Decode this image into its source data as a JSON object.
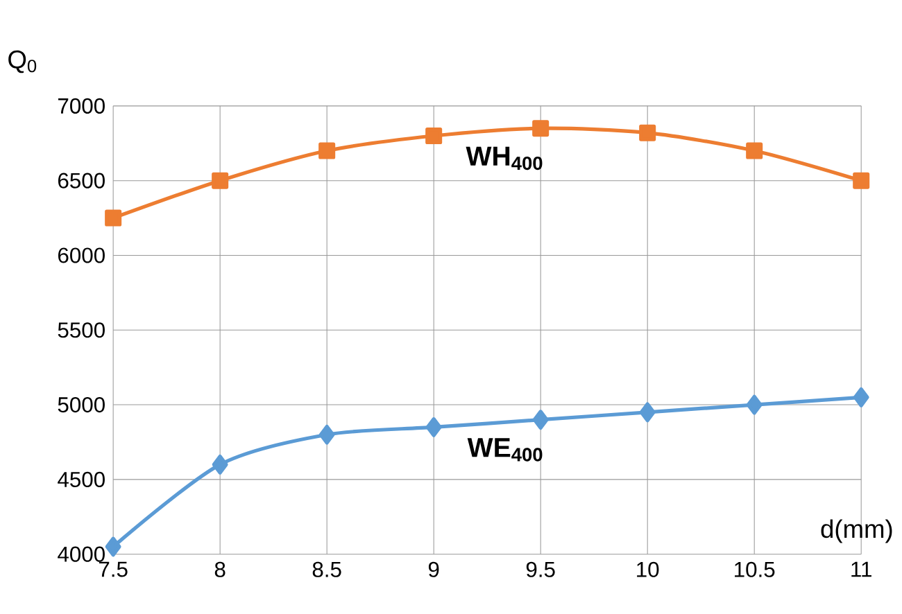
{
  "chart_data": {
    "type": "line",
    "xlabel": "d(mm)",
    "ylabel": "Q$_{0}$",
    "x": [
      7.5,
      8,
      8.5,
      9,
      9.5,
      10,
      10.5,
      11
    ],
    "series": [
      {
        "name": "WH$_{400}$",
        "color": "#ed7d31",
        "marker": "square",
        "values": [
          6250,
          6500,
          6700,
          6800,
          6850,
          6820,
          6700,
          6500
        ]
      },
      {
        "name": "WE$_{400}$",
        "color": "#5b9bd5",
        "marker": "diamond",
        "values": [
          4050,
          4600,
          4800,
          4850,
          4900,
          4950,
          5000,
          5050
        ]
      }
    ],
    "xlim": [
      7.5,
      11
    ],
    "xticks": [
      7.5,
      8,
      8.5,
      9,
      9.5,
      10,
      10.5,
      11
    ],
    "ylim": [
      4000,
      7000
    ],
    "yticks": [
      4000,
      4500,
      5000,
      5500,
      6000,
      6500,
      7000
    ],
    "grid": true,
    "legend": false
  }
}
